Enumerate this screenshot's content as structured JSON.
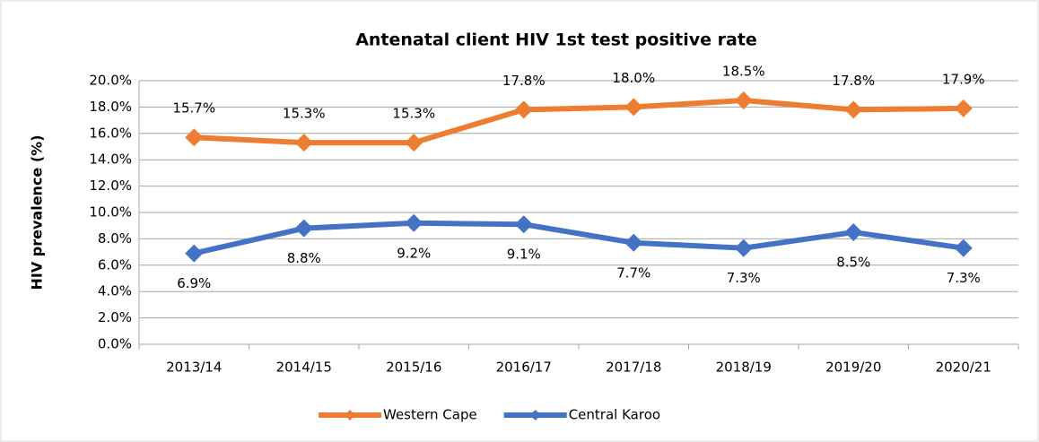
{
  "chart_data": {
    "type": "line",
    "title": "Antenatal client HIV 1st test positive rate",
    "y_label": "HIV prevalence (%)",
    "categories": [
      "2013/14",
      "2014/15",
      "2015/16",
      "2016/17",
      "2017/18",
      "2018/19",
      "2019/20",
      "2020/21"
    ],
    "series": [
      {
        "name": "Western Cape",
        "color": "#ed7d31",
        "values": [
          15.7,
          15.3,
          15.3,
          17.8,
          18.0,
          18.5,
          17.8,
          17.9
        ],
        "value_labels": [
          "15.7%",
          "15.3%",
          "15.3%",
          "17.8%",
          "18.0%",
          "18.5%",
          "17.8%",
          "17.9%"
        ]
      },
      {
        "name": "Central Karoo",
        "color": "#4472c4",
        "values": [
          6.9,
          8.8,
          9.2,
          9.1,
          7.7,
          7.3,
          8.5,
          7.3
        ],
        "value_labels": [
          "6.9%",
          "8.8%",
          "9.2%",
          "9.1%",
          "7.7%",
          "7.3%",
          "8.5%",
          "7.3%"
        ]
      }
    ],
    "ylim": [
      0,
      20
    ],
    "yticks": [
      {
        "value": 0,
        "label": "0.0%"
      },
      {
        "value": 2,
        "label": "2.0%"
      },
      {
        "value": 4,
        "label": "4.0%"
      },
      {
        "value": 6,
        "label": "6.0%"
      },
      {
        "value": 8,
        "label": "8.0%"
      },
      {
        "value": 10,
        "label": "10.0%"
      },
      {
        "value": 12,
        "label": "12.0%"
      },
      {
        "value": 14,
        "label": "14.0%"
      },
      {
        "value": 16,
        "label": "16.0%"
      },
      {
        "value": 18,
        "label": "18.0%"
      },
      {
        "value": 20,
        "label": "20.0%"
      }
    ],
    "grid": true,
    "legend": "bottom"
  }
}
